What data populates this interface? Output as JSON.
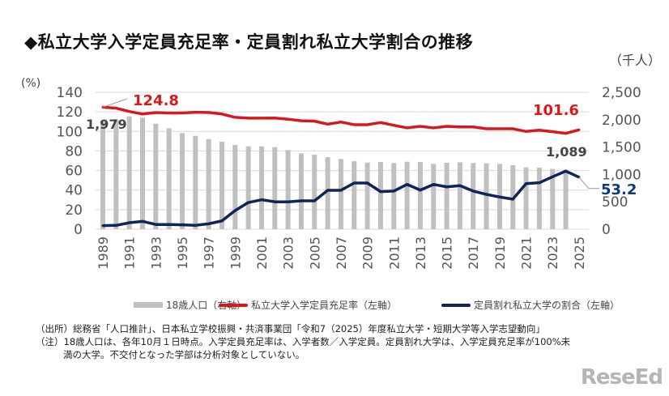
{
  "title": "◆私立大学入学定員充足率・定員割れ私立大学割合の推移",
  "chart_data": {
    "type": "bar+line",
    "left_unit": "(%)",
    "right_unit": "（千人）",
    "left_ylim": [
      0,
      140
    ],
    "left_ticks": [
      "0",
      "20",
      "40",
      "60",
      "80",
      "100",
      "120",
      "140"
    ],
    "right_ylim": [
      0,
      2500
    ],
    "right_ticks": [
      "0",
      "500",
      "1,000",
      "1,500",
      "2,000",
      "2,500"
    ],
    "grid": true,
    "legend_placement": "bottom",
    "categories": [
      "1989",
      "1990",
      "1991",
      "1992",
      "1993",
      "1994",
      "1995",
      "1996",
      "1997",
      "1998",
      "1999",
      "2000",
      "2001",
      "2002",
      "2003",
      "2004",
      "2005",
      "2006",
      "2007",
      "2008",
      "2009",
      "2010",
      "2011",
      "2012",
      "2013",
      "2014",
      "2015",
      "2016",
      "2017",
      "2018",
      "2019",
      "2020",
      "2021",
      "2022",
      "2023",
      "2024",
      "2025"
    ],
    "xtick_labels": [
      "1989",
      "1991",
      "1993",
      "1995",
      "1997",
      "1999",
      "2001",
      "2003",
      "2005",
      "2007",
      "2009",
      "2011",
      "2013",
      "2015",
      "2017",
      "2019",
      "2021",
      "2023",
      "2025"
    ],
    "series": [
      {
        "name": "18歳人口（右軸）",
        "type": "bar",
        "axis": "right",
        "color": "#c0c0c0",
        "values": [
          1979,
          2010,
          2060,
          2036,
          1927,
          1844,
          1755,
          1705,
          1646,
          1597,
          1538,
          1513,
          1513,
          1498,
          1445,
          1386,
          1361,
          1316,
          1282,
          1242,
          1217,
          1228,
          1208,
          1232,
          1228,
          1193,
          1213,
          1223,
          1208,
          1203,
          1193,
          1168,
          1129,
          1124,
          1100,
          1089,
          null
        ]
      },
      {
        "name": "私立大学入学定員充足率（左軸）",
        "type": "line",
        "axis": "left",
        "color": "#d7191c",
        "values": [
          124.8,
          123.8,
          120.4,
          117.8,
          119.3,
          118.9,
          118.9,
          119.6,
          119.4,
          117.8,
          114.4,
          113.6,
          113.6,
          113.7,
          112.5,
          110.9,
          110.5,
          107.4,
          109.6,
          106.9,
          106.9,
          109.1,
          106.3,
          103.6,
          105.2,
          103.6,
          105.2,
          104.6,
          104.6,
          102.7,
          102.7,
          102.7,
          100.0,
          101.3,
          99.7,
          98.0,
          101.6
        ]
      },
      {
        "name": "定員割れ私立大学の割合（左軸）",
        "type": "line",
        "axis": "left",
        "color": "#0d2557",
        "values": [
          3.6,
          3.9,
          6.6,
          8.0,
          4.8,
          4.8,
          4.5,
          3.9,
          5.5,
          8.5,
          19.1,
          27.3,
          30.1,
          28.0,
          28.0,
          29.0,
          29.0,
          39.8,
          39.8,
          47.2,
          47.2,
          38.4,
          39.0,
          45.8,
          40.0,
          45.8,
          43.3,
          44.5,
          39.0,
          35.6,
          32.9,
          30.7,
          46.6,
          47.5,
          53.6,
          59.4,
          53.2
        ]
      }
    ],
    "annotations": {
      "red_first": "124.8",
      "red_last": "101.6",
      "bar_first": "1,979",
      "bar_last": "1,089",
      "blue_last": "53.2"
    }
  },
  "notes": {
    "source": "（出所）総務省「人口推計」、日本私立学校振興・共済事業団「令和7（2025）年度私立大学・短期大学等入学志望動向」",
    "note1": "（注）18歳人口は、各年10月１日時点。入学定員充足率は、入学者数／入学定員。定員割れ大学は、入学定員充足率が100%未",
    "note2": "満の大学。不交付となった学部は分析対象としていない。"
  },
  "logo": "ReseEd"
}
